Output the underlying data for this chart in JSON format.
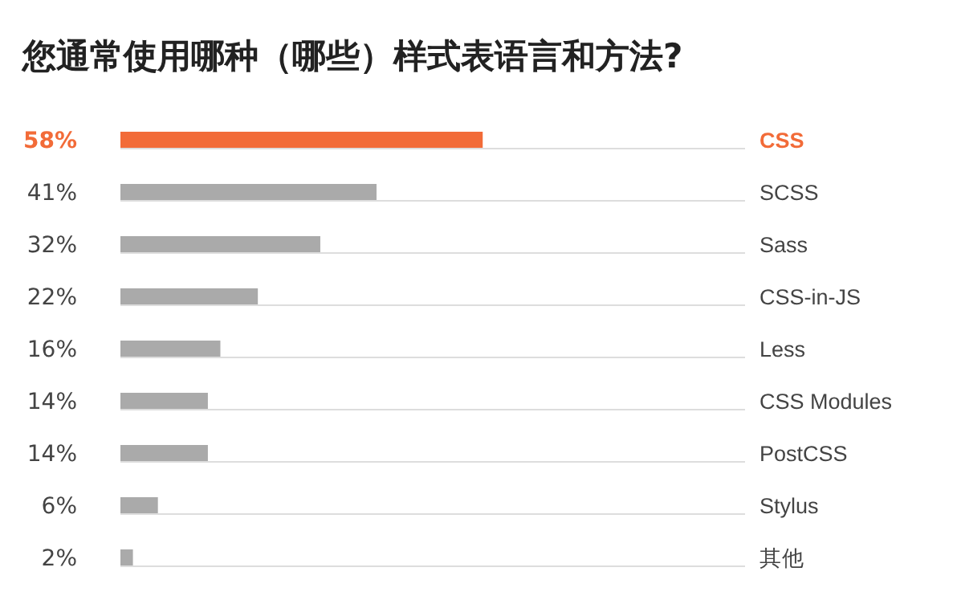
{
  "chart_data": {
    "type": "bar",
    "orientation": "horizontal",
    "title": "您通常使用哪种（哪些）样式表语言和方法?",
    "categories": [
      "CSS",
      "SCSS",
      "Sass",
      "CSS-in-JS",
      "Less",
      "CSS Modules",
      "PostCSS",
      "Stylus",
      "其他"
    ],
    "values": [
      58,
      41,
      32,
      22,
      16,
      14,
      14,
      6,
      2
    ],
    "value_labels": [
      "58%",
      "41%",
      "32%",
      "22%",
      "16%",
      "14%",
      "14%",
      "6%",
      "2%"
    ],
    "colors": [
      "#f26b38",
      "#aaaaaa",
      "#aaaaaa",
      "#aaaaaa",
      "#aaaaaa",
      "#aaaaaa",
      "#aaaaaa",
      "#aaaaaa",
      "#aaaaaa"
    ],
    "xlim": [
      0,
      100
    ]
  }
}
